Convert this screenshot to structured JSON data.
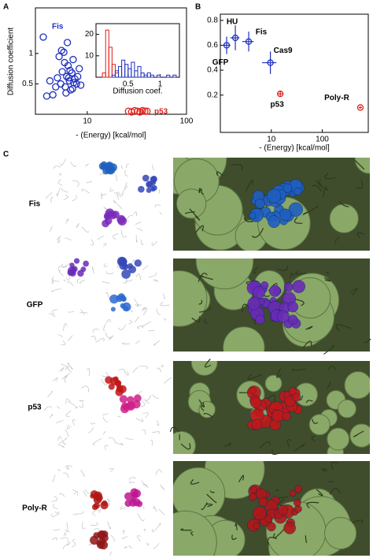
{
  "panel_labels": [
    "A",
    "B",
    "C"
  ],
  "chart_data": [
    {
      "type": "scatter",
      "x_label": "- (Energy) [kcal/mol]",
      "y_label": "Diffusion coefficient",
      "log_x": true,
      "xlim": [
        3,
        100
      ],
      "xticks": [
        10,
        100
      ],
      "ylim": [
        0,
        1.75
      ],
      "yticks": [
        0.5,
        1
      ],
      "series": [
        {
          "name": "Fis",
          "color": "#1f2fbf",
          "x": [
            3.6,
            4.2,
            4.5,
            5.0,
            5.2,
            5.4,
            5.6,
            5.8,
            6.0,
            6.2,
            6.4,
            6.6,
            6.8,
            7.0,
            7.2,
            7.5,
            7.8,
            8.0,
            8.3,
            8.6,
            5.5,
            6.1,
            6.7,
            7.3,
            4.8,
            5.9,
            6.5,
            7.1,
            3.9,
            6.3
          ],
          "values": [
            1.27,
            0.55,
            0.32,
            0.6,
            0.95,
            0.5,
            0.7,
            1.02,
            0.45,
            0.62,
            0.8,
            0.55,
            0.4,
            0.68,
            0.9,
            0.58,
            0.5,
            0.62,
            0.75,
            0.48,
            1.05,
            0.35,
            0.72,
            0.52,
            0.45,
            0.85,
            0.6,
            0.42,
            0.3,
            1.18
          ]
        },
        {
          "name": "p53",
          "color": "#e0201b",
          "x": [
            26,
            28,
            30,
            32,
            34,
            36,
            38,
            40
          ],
          "values": [
            0.05,
            0.04,
            0.06,
            0.05,
            0.04,
            0.06,
            0.05,
            0.05
          ]
        }
      ]
    },
    {
      "type": "histogram",
      "x_label": "Diffusion coef.",
      "xlim": [
        0,
        1.3
      ],
      "xticks": [
        0.5,
        1
      ],
      "ylim": [
        0,
        25
      ],
      "yticks": [
        10,
        20
      ],
      "bins": [
        0,
        0.05,
        0.1,
        0.15,
        0.2,
        0.25,
        0.3,
        0.35,
        0.4,
        0.45,
        0.5,
        0.55,
        0.6,
        0.65,
        0.7,
        0.75,
        0.8,
        0.85,
        0.9,
        0.95,
        1,
        1.05,
        1.1,
        1.15,
        1.2,
        1.25,
        1.3
      ],
      "series": [
        {
          "color": "#e0201b",
          "values": [
            0,
            0,
            2,
            22,
            14,
            6,
            2,
            0,
            0,
            0,
            0,
            0,
            0,
            0,
            0,
            0,
            0,
            0,
            0,
            0,
            0,
            0,
            0,
            0,
            0,
            0
          ]
        },
        {
          "color": "#1f2fbf",
          "values": [
            0,
            0,
            0,
            0,
            0,
            1,
            3,
            5,
            8,
            6,
            4,
            7,
            3,
            5,
            2,
            1,
            2,
            1,
            0,
            1,
            0,
            0,
            1,
            0,
            1,
            0
          ]
        }
      ]
    },
    {
      "type": "errorbar",
      "x_label": "- (Energy) [kcal/mol]",
      "log_x": true,
      "xlim": [
        1,
        800
      ],
      "xticks": [
        10,
        100
      ],
      "ylim": [
        -0.1,
        0.85
      ],
      "yticks": [
        0.2,
        0.4,
        0.6,
        0.8
      ],
      "labels": [
        "GFP",
        "HU",
        "Fis",
        "Cas9",
        "p53",
        "Poly-R"
      ],
      "x": [
        1.33,
        1.97,
        3.6,
        9.6,
        15,
        560
      ],
      "values": [
        0.6,
        0.66,
        0.63,
        0.46,
        0.21,
        0.1
      ],
      "xerr": [
        0.25,
        0.4,
        0.9,
        3,
        1.5,
        40
      ],
      "yerr": [
        0.07,
        0.1,
        0.08,
        0.09,
        0.02,
        0.01
      ],
      "colors": [
        "#1f2fbf",
        "#1f2fbf",
        "#1f2fbf",
        "#1f2fbf",
        "#e0201b",
        "#e0201b"
      ]
    }
  ],
  "panel_c": {
    "rows": [
      "Fis",
      "GFP",
      "p53",
      "Poly-R"
    ]
  }
}
